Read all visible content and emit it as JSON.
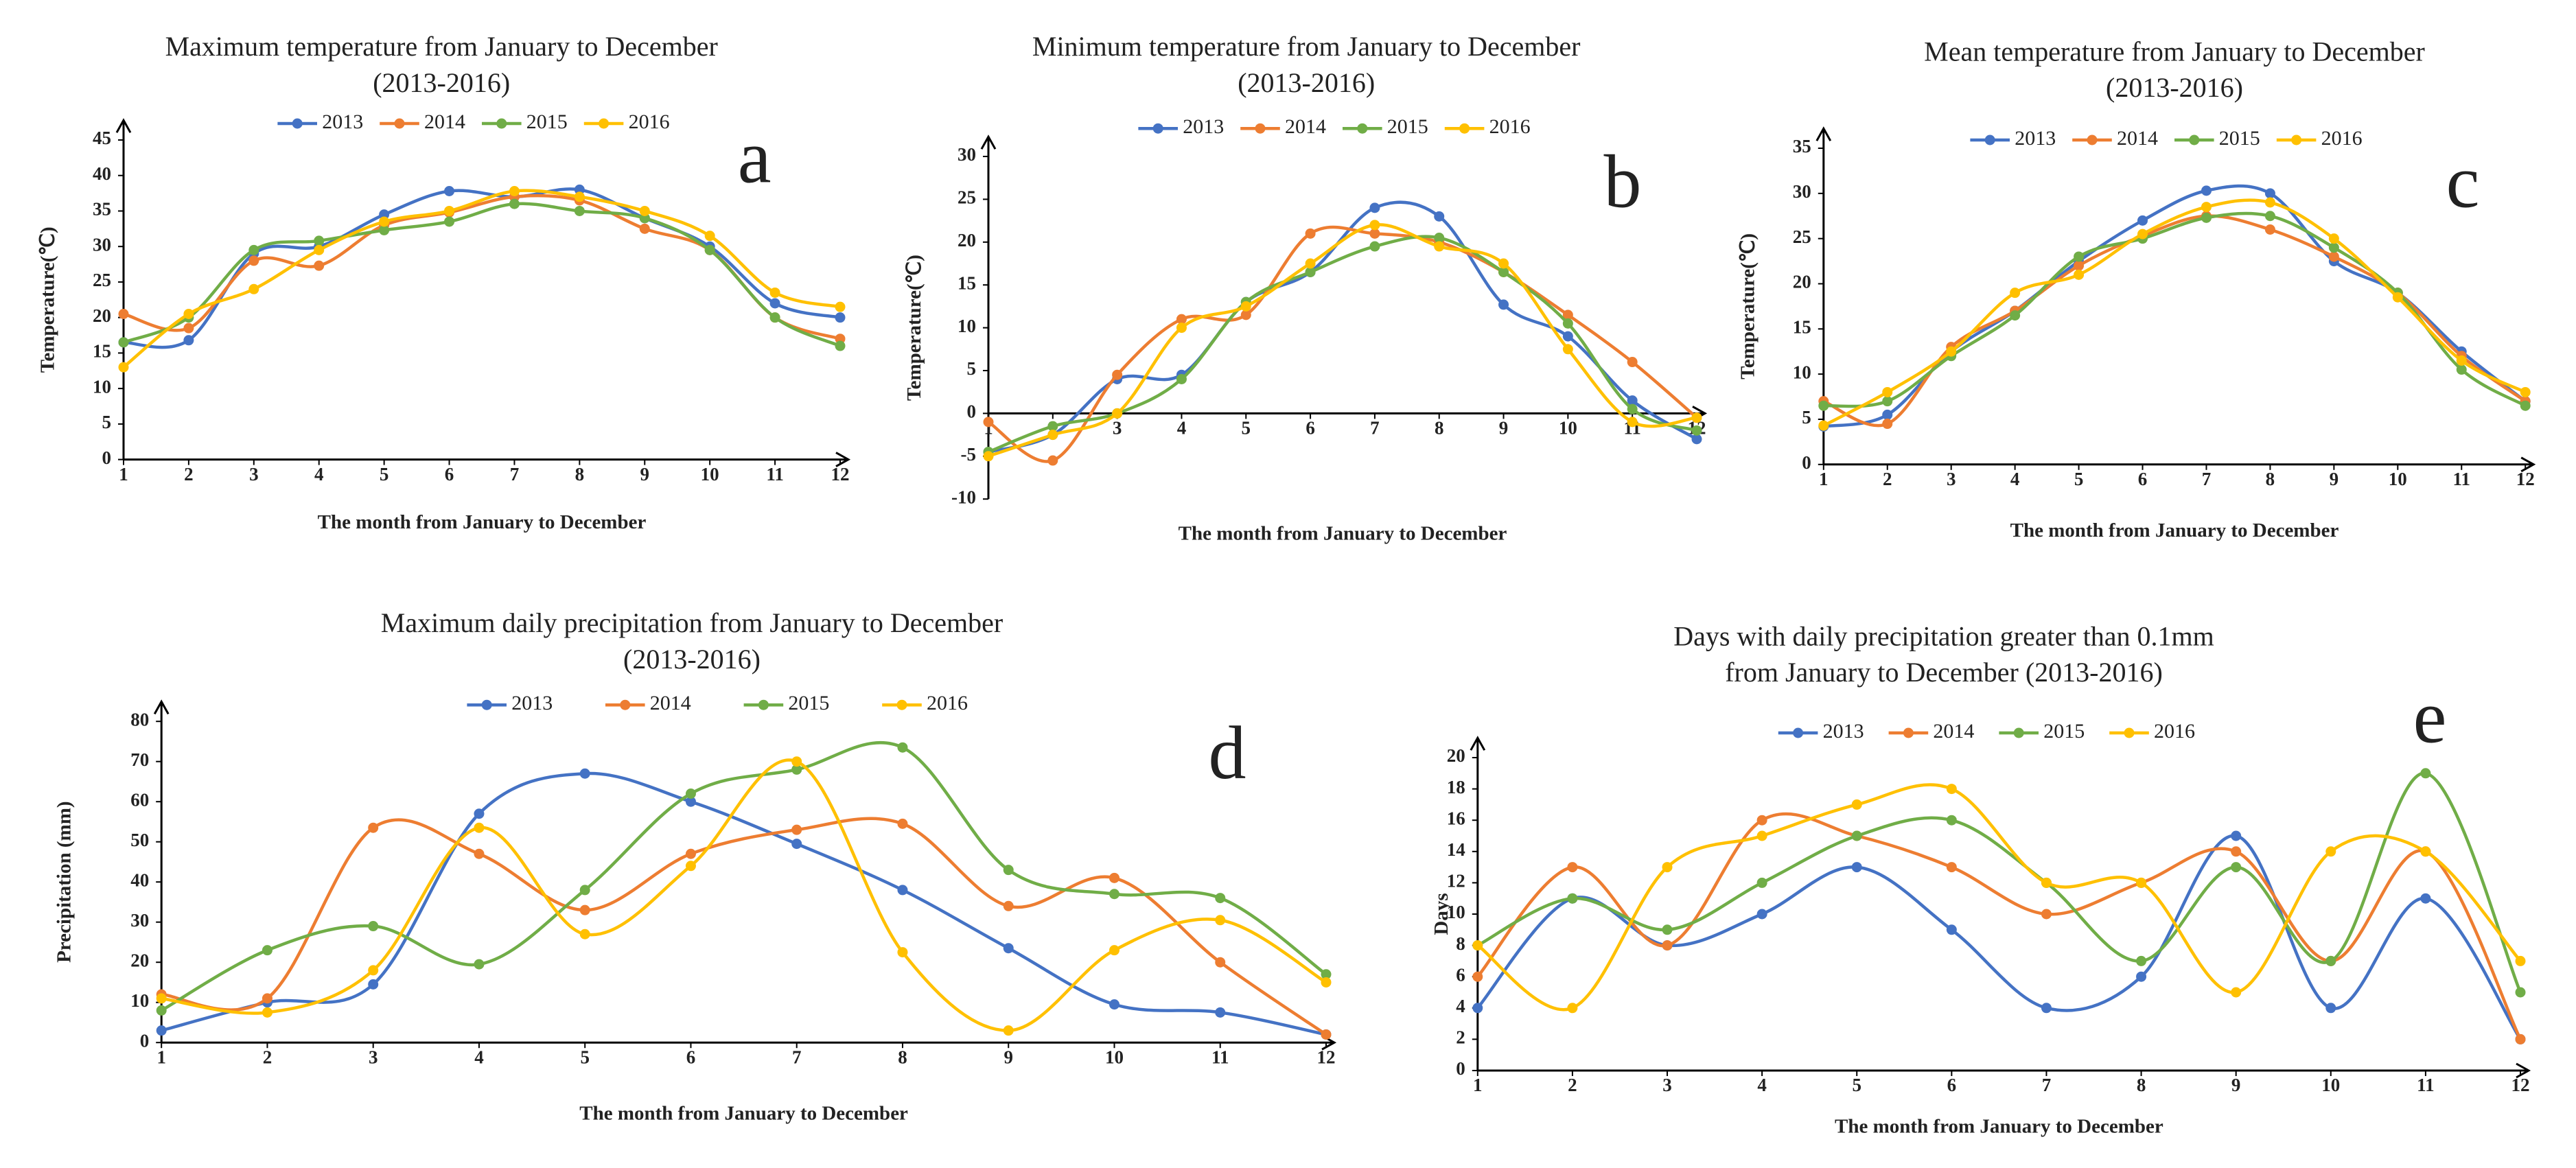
{
  "chart_data": [
    {
      "type": "line",
      "panel_label": "a",
      "title": "Maximum temperature from January to December",
      "subtitle": "(2013-2016)",
      "x_label": "The month from January to December",
      "y_label": "Temperature(℃)",
      "x": [
        1,
        2,
        3,
        4,
        5,
        6,
        7,
        8,
        9,
        10,
        11,
        12
      ],
      "xlim": [
        1,
        12
      ],
      "xticks": [
        1,
        2,
        3,
        4,
        5,
        6,
        7,
        8,
        9,
        10,
        11,
        12
      ],
      "ylim": [
        0,
        45
      ],
      "yticks": [
        0,
        5,
        10,
        15,
        20,
        25,
        30,
        35,
        40,
        45
      ],
      "series": [
        {
          "name": "2013",
          "color": "#4472c4",
          "values": [
            16.5,
            16.8,
            29,
            30,
            34.5,
            37.8,
            37,
            38,
            34,
            30,
            22,
            20
          ]
        },
        {
          "name": "2014",
          "color": "#ed7d31",
          "values": [
            20.5,
            18.5,
            28,
            27.3,
            33,
            34.8,
            37,
            36.5,
            32.5,
            29.5,
            20,
            17
          ]
        },
        {
          "name": "2015",
          "color": "#70ad47",
          "values": [
            16.5,
            20,
            29.5,
            30.8,
            32.3,
            33.5,
            36,
            35,
            34,
            29.5,
            20,
            16
          ]
        },
        {
          "name": "2016",
          "color": "#ffc000",
          "values": [
            13,
            20.5,
            24,
            29.5,
            33.5,
            35,
            37.8,
            37,
            35,
            31.5,
            23.5,
            21.5
          ]
        }
      ]
    },
    {
      "type": "line",
      "panel_label": "b",
      "title": "Minimum temperature from January to December",
      "subtitle": "(2013-2016)",
      "x_label": "The month from January to December",
      "y_label": "Temperature(℃)",
      "x": [
        1,
        2,
        3,
        4,
        5,
        6,
        7,
        8,
        9,
        10,
        11,
        12
      ],
      "xlim": [
        1,
        12
      ],
      "xticks": [
        1,
        2,
        3,
        4,
        5,
        6,
        7,
        8,
        9,
        10,
        11,
        12
      ],
      "ylim": [
        -10,
        30
      ],
      "yticks": [
        -10,
        -5,
        0,
        5,
        10,
        15,
        20,
        25,
        30
      ],
      "series": [
        {
          "name": "2013",
          "color": "#4472c4",
          "values": [
            -4.5,
            -2.5,
            4,
            4.5,
            13,
            16.5,
            24,
            23,
            12.7,
            9,
            1.5,
            -3
          ]
        },
        {
          "name": "2014",
          "color": "#ed7d31",
          "values": [
            -1,
            -5.5,
            4.5,
            11,
            11.5,
            21,
            21,
            20,
            16.5,
            11.5,
            6,
            -0.5
          ]
        },
        {
          "name": "2015",
          "color": "#70ad47",
          "values": [
            -4.5,
            -1.5,
            0,
            4,
            13,
            16.5,
            19.5,
            20.5,
            16.5,
            10.5,
            0.5,
            -2
          ]
        },
        {
          "name": "2016",
          "color": "#ffc000",
          "values": [
            -5,
            -2.5,
            0,
            10,
            12.5,
            17.5,
            22,
            19.5,
            17.5,
            7.5,
            -1,
            -0.5
          ]
        }
      ]
    },
    {
      "type": "line",
      "panel_label": "c",
      "title": "Mean temperature from January to December",
      "subtitle": "(2013-2016)",
      "x_label": "The month from January to December",
      "y_label": "Temperature(℃)",
      "x": [
        1,
        2,
        3,
        4,
        5,
        6,
        7,
        8,
        9,
        10,
        11,
        12
      ],
      "xlim": [
        1,
        12
      ],
      "xticks": [
        1,
        2,
        3,
        4,
        5,
        6,
        7,
        8,
        9,
        10,
        11,
        12
      ],
      "ylim": [
        0,
        35
      ],
      "yticks": [
        0,
        5,
        10,
        15,
        20,
        25,
        30,
        35
      ],
      "series": [
        {
          "name": "2013",
          "color": "#4472c4",
          "values": [
            4.2,
            5.5,
            12.5,
            17,
            22.5,
            27,
            30.3,
            30,
            22.5,
            19,
            12.5,
            7
          ]
        },
        {
          "name": "2014",
          "color": "#ed7d31",
          "values": [
            7,
            4.5,
            13,
            17,
            22,
            25.3,
            27.5,
            26,
            23,
            19,
            12,
            7
          ]
        },
        {
          "name": "2015",
          "color": "#70ad47",
          "values": [
            6.5,
            7,
            12,
            16.5,
            23,
            25,
            27.3,
            27.5,
            24,
            19,
            10.5,
            6.5
          ]
        },
        {
          "name": "2016",
          "color": "#ffc000",
          "values": [
            4.3,
            8,
            12.5,
            19,
            21,
            25.5,
            28.5,
            29,
            25,
            18.5,
            11.5,
            8
          ]
        }
      ]
    },
    {
      "type": "line",
      "panel_label": "d",
      "title": "Maximum daily precipitation from January to December",
      "subtitle": "(2013-2016)",
      "x_label": "The month from January to December",
      "y_label": "Precipitation (mm)",
      "x": [
        1,
        2,
        3,
        4,
        5,
        6,
        7,
        8,
        9,
        10,
        11,
        12
      ],
      "xlim": [
        1,
        12
      ],
      "xticks": [
        1,
        2,
        3,
        4,
        5,
        6,
        7,
        8,
        9,
        10,
        11,
        12
      ],
      "ylim": [
        0,
        80
      ],
      "yticks": [
        0,
        10,
        20,
        30,
        40,
        50,
        60,
        70,
        80
      ],
      "series": [
        {
          "name": "2013",
          "color": "#4472c4",
          "values": [
            3,
            10,
            14.5,
            57,
            67,
            60,
            49.5,
            38,
            23.5,
            9.5,
            7.5,
            2
          ]
        },
        {
          "name": "2014",
          "color": "#ed7d31",
          "values": [
            12,
            11,
            53.5,
            47,
            33,
            47,
            53,
            54.5,
            34,
            41,
            20,
            2
          ]
        },
        {
          "name": "2015",
          "color": "#70ad47",
          "values": [
            8,
            23,
            29,
            19.5,
            38,
            62,
            68,
            73.5,
            43,
            37,
            36,
            17
          ]
        },
        {
          "name": "2016",
          "color": "#ffc000",
          "values": [
            11,
            7.5,
            18,
            53.5,
            27,
            44,
            70,
            22.5,
            3,
            23,
            30.5,
            15
          ]
        }
      ]
    },
    {
      "type": "line",
      "panel_label": "e",
      "title": "Days with daily precipitation greater than 0.1mm",
      "subtitle": "from January to December (2013-2016)",
      "x_label": "The month from January to December",
      "y_label": "Days",
      "x": [
        1,
        2,
        3,
        4,
        5,
        6,
        7,
        8,
        9,
        10,
        11,
        12
      ],
      "xlim": [
        1,
        12
      ],
      "xticks": [
        1,
        2,
        3,
        4,
        5,
        6,
        7,
        8,
        9,
        10,
        11,
        12
      ],
      "ylim": [
        0,
        20
      ],
      "yticks": [
        0,
        2,
        4,
        6,
        8,
        10,
        12,
        14,
        16,
        18,
        20
      ],
      "series": [
        {
          "name": "2013",
          "color": "#4472c4",
          "values": [
            4,
            11,
            8,
            10,
            13,
            9,
            4,
            6,
            15,
            4,
            11,
            2
          ]
        },
        {
          "name": "2014",
          "color": "#ed7d31",
          "values": [
            6,
            13,
            8,
            16,
            15,
            13,
            10,
            12,
            14,
            7,
            14,
            2
          ]
        },
        {
          "name": "2015",
          "color": "#70ad47",
          "values": [
            8,
            11,
            9,
            12,
            15,
            16,
            12,
            7,
            13,
            7,
            19,
            5
          ]
        },
        {
          "name": "2016",
          "color": "#ffc000",
          "values": [
            8,
            4,
            13,
            15,
            17,
            18,
            12,
            12,
            5,
            14,
            14,
            7
          ]
        }
      ]
    }
  ]
}
